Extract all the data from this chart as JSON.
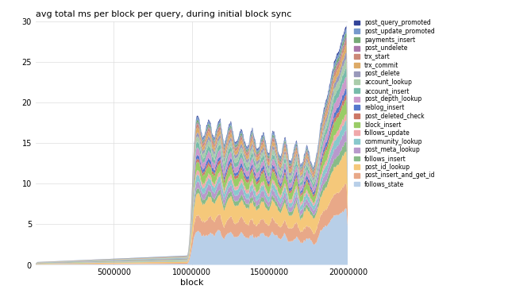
{
  "title": "avg total ms per block per query, during initial block sync",
  "xlabel": "block",
  "xlim": [
    0,
    20000000
  ],
  "ylim": [
    0,
    30
  ],
  "yticks": [
    0,
    5,
    10,
    15,
    20,
    25,
    30
  ],
  "xticks": [
    5000000,
    10000000,
    15000000,
    20000000
  ],
  "xtick_labels": [
    "5000000",
    "10000000",
    "15000000",
    "20000000"
  ],
  "series_order": [
    "follows_state",
    "post_insert_and_get_id",
    "post_id_lookup",
    "follows_insert",
    "post_meta_lookup",
    "community_lookup",
    "follows_update",
    "block_insert",
    "post_deleted_check",
    "reblog_insert",
    "post_depth_lookup",
    "account_insert",
    "account_lookup",
    "post_delete",
    "trx_commit",
    "trx_start",
    "post_undelete",
    "payments_insert",
    "post_update_promoted",
    "post_query_promoted"
  ],
  "colors": {
    "follows_state": "#b8cfe8",
    "post_insert_and_get_id": "#e8a888",
    "post_id_lookup": "#f5c87a",
    "follows_insert": "#88bb88",
    "post_meta_lookup": "#b899cc",
    "community_lookup": "#88c8cc",
    "follows_update": "#f0a8aa",
    "block_insert": "#99cc66",
    "post_deleted_check": "#cc7766",
    "reblog_insert": "#5577cc",
    "post_depth_lookup": "#cc99cc",
    "account_insert": "#77bbaa",
    "account_lookup": "#aaccaa",
    "post_delete": "#9999bb",
    "trx_commit": "#ddaa66",
    "trx_start": "#cc8877",
    "post_undelete": "#aa77aa",
    "payments_insert": "#77aa77",
    "post_update_promoted": "#7799cc",
    "post_query_promoted": "#334499"
  },
  "background_color": "#ffffff",
  "grid_color": "#dddddd"
}
